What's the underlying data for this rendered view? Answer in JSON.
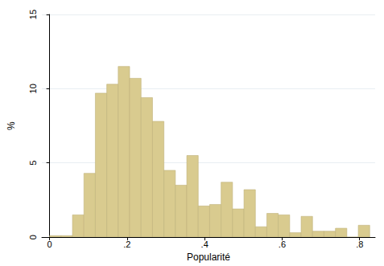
{
  "chart_data": {
    "type": "histogram",
    "x_label": "Popularité",
    "y_label": "%",
    "bins": [
      0,
      0.0295,
      0.059,
      0.0885,
      0.118,
      0.1475,
      0.177,
      0.2065,
      0.236,
      0.2655,
      0.295,
      0.3245,
      0.354,
      0.3835,
      0.413,
      0.4425,
      0.472,
      0.5015,
      0.531,
      0.5605,
      0.59,
      0.6195,
      0.649,
      0.6785,
      0.708,
      0.7375,
      0.767,
      0.7965,
      0.826
    ],
    "values": [
      0.1,
      0.1,
      1.5,
      4.3,
      9.7,
      10.3,
      11.5,
      10.7,
      9.4,
      7.8,
      4.5,
      3.5,
      5.5,
      2.1,
      2.2,
      3.7,
      1.9,
      3.2,
      0.7,
      1.6,
      1.5,
      0.3,
      1.4,
      0.4,
      0.4,
      0.6,
      0,
      0.8
    ],
    "color": "#d9cb8f",
    "xlim": [
      -0.02,
      0.84
    ],
    "xticks": [
      0,
      {
        "value": 0.2,
        "label": ".2"
      },
      {
        "value": 0.4,
        "label": ".4"
      },
      {
        "value": 0.6,
        "label": ".6"
      },
      {
        "value": 0.8,
        "label": ".8"
      }
    ],
    "ylim": [
      0,
      15
    ],
    "yticks": [
      0,
      5,
      10,
      15
    ],
    "grid": true
  }
}
